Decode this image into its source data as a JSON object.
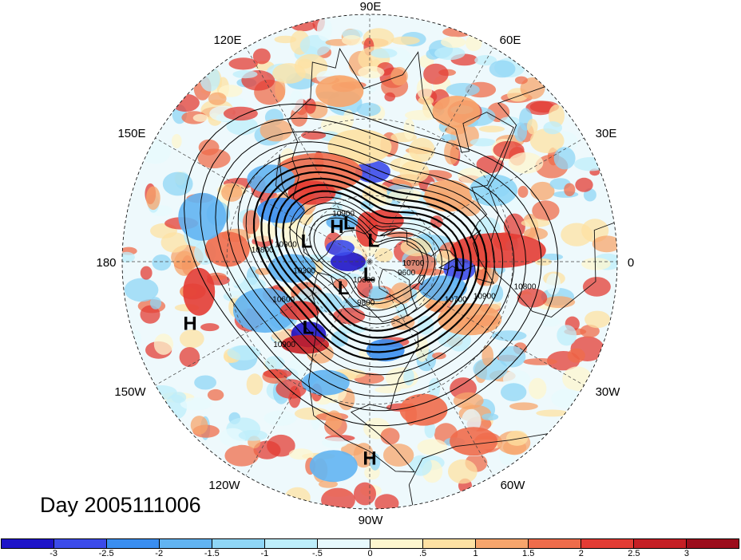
{
  "title": "Day 2005111006",
  "longitude_labels": {
    "lon_90e": "90E",
    "lon_60e": "60E",
    "lon_30e": "30E",
    "lon_0": "0",
    "lon_30w": "30W",
    "lon_60w": "60W",
    "lon_90w": "90W",
    "lon_120w": "120W",
    "lon_150w": "150W",
    "lon_180": "180",
    "lon_150e": "150E",
    "lon_120e": "120E"
  },
  "pressure_centers": [
    {
      "label": "L",
      "lon": 162,
      "lat": 60
    },
    {
      "label": "H",
      "lon": 133,
      "lat": 68
    },
    {
      "label": "L",
      "lon": 118,
      "lat": 70
    },
    {
      "label": "L",
      "lon": 80,
      "lat": 80
    },
    {
      "label": "L",
      "lon": -93,
      "lat": 84
    },
    {
      "label": "L",
      "lon": -135,
      "lat": 73
    },
    {
      "label": "L",
      "lon": -2,
      "lat": 50
    },
    {
      "label": "L",
      "lon": -133,
      "lat": 50
    },
    {
      "label": "H",
      "lon": -161,
      "lat": 15
    },
    {
      "label": "H",
      "lon": -90,
      "lat": 13
    }
  ],
  "contour_labels": [
    "10900",
    "10900",
    "10800",
    "10300",
    "10600",
    "10700",
    "10900",
    "10800",
    "10700",
    "10900",
    "10800",
    "9800",
    "9600"
  ],
  "colorbar": {
    "colors": [
      "#1e14c8",
      "#3c4bea",
      "#3a8ef0",
      "#62b4f2",
      "#8fd6f6",
      "#bdeefb",
      "#e7f9fd",
      "#fdf6cf",
      "#fde1a3",
      "#f7a56c",
      "#ef6c4b",
      "#e33c34",
      "#c51f25",
      "#9c0d1c"
    ],
    "labels": [
      "-3",
      "-2.5",
      "-2",
      "-1.5",
      "-1",
      "-.5",
      "0",
      ".5",
      "1",
      "1.5",
      "2",
      "2.5",
      "3"
    ]
  }
}
